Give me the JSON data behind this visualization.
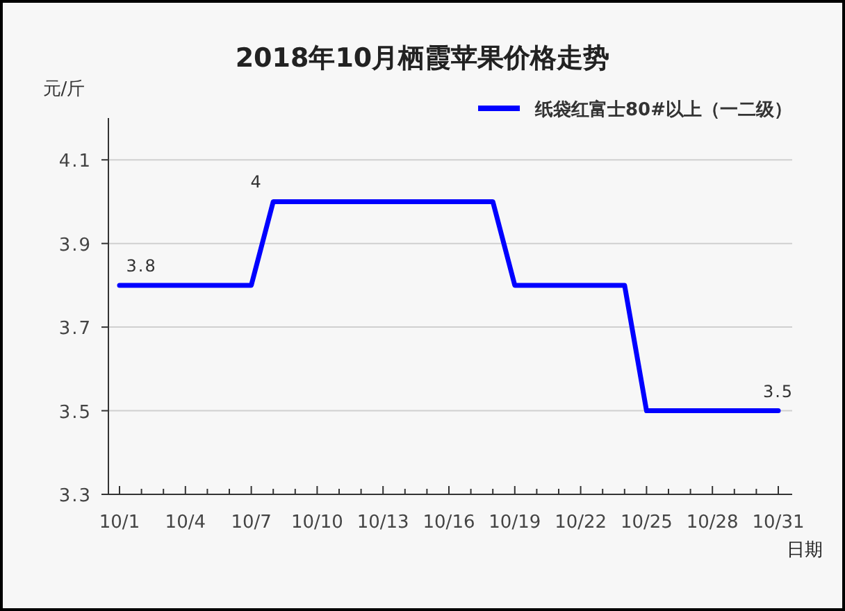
{
  "chart_data": {
    "type": "line",
    "title": "2018年10月栖霞苹果价格走势",
    "xlabel": "日期",
    "ylabel": "元/斤",
    "categories": [
      "10/1",
      null,
      null,
      "10/4",
      null,
      null,
      "10/7",
      null,
      null,
      "10/10",
      null,
      null,
      "10/13",
      null,
      null,
      "10/16",
      null,
      null,
      "10/19",
      null,
      null,
      "10/22",
      null,
      null,
      "10/25",
      null,
      null,
      "10/28",
      null,
      null,
      "10/31"
    ],
    "series": [
      {
        "name": "纸袋红富士80#以上（一二级）",
        "color": "#0000ff",
        "values": [
          3.8,
          3.8,
          3.8,
          3.8,
          3.8,
          3.8,
          3.8,
          4,
          4,
          4,
          4,
          4,
          4,
          4,
          4,
          4,
          4,
          4,
          3.8,
          3.8,
          3.8,
          3.8,
          3.8,
          3.8,
          3.5,
          3.5,
          3.5,
          3.5,
          3.5,
          3.5,
          3.5
        ],
        "value_labels": [
          null,
          "3.8",
          null,
          null,
          null,
          null,
          null,
          "4",
          null,
          null,
          null,
          null,
          null,
          null,
          null,
          null,
          null,
          null,
          null,
          null,
          null,
          null,
          null,
          null,
          null,
          null,
          null,
          null,
          null,
          null,
          "3.5"
        ]
      }
    ],
    "ylim": [
      3.3,
      4.2
    ],
    "yticks": [
      3.3,
      3.5,
      3.7,
      3.9,
      4.1
    ],
    "grid": "y",
    "legend": "top right",
    "line_style": "solid"
  }
}
